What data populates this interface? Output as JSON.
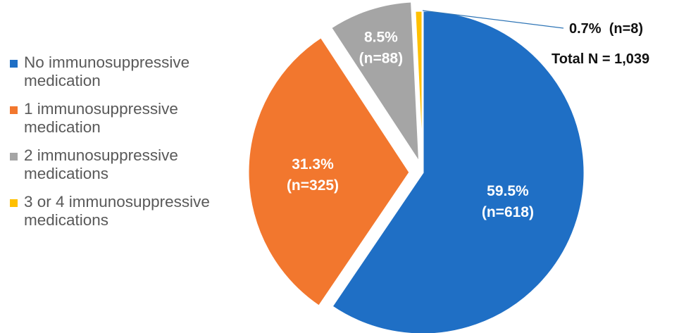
{
  "chart_data": {
    "type": "pie",
    "total": 1039,
    "slices": [
      {
        "name": "No immunosuppressive medication",
        "n": 618,
        "percent": 59.5,
        "color": "#1F6FC5",
        "label_pct": "59.5%",
        "label_n": "(n=618)"
      },
      {
        "name": "1 immunosuppressive medication",
        "n": 325,
        "percent": 31.3,
        "color": "#F2772E",
        "label_pct": "31.3%",
        "label_n": "(n=325)"
      },
      {
        "name": "2 immunosuppressive medications",
        "n": 88,
        "percent": 8.5,
        "color": "#A5A5A5",
        "label_pct": "8.5%",
        "label_n": "(n=88)"
      },
      {
        "name": "3 or 4 immunosuppressive medications",
        "n": 8,
        "percent": 0.7,
        "color": "#FFC000",
        "label_pct": "",
        "label_n": ""
      }
    ],
    "legend": {
      "placement": "left",
      "items": [
        {
          "line1": "No immunosuppressive",
          "line2": "medication",
          "color": "#1F6FC5"
        },
        {
          "line1": "1 immunosuppressive",
          "line2": "medication",
          "color": "#F2772E"
        },
        {
          "line1": "2 immunosuppressive",
          "line2": "medications",
          "color": "#A5A5A5"
        },
        {
          "line1": "3 or 4 immunosuppressive",
          "line2": "medications",
          "color": "#FFC000"
        }
      ]
    },
    "annotations": {
      "small_slice": "0.7%  (n=8)",
      "total": "Total N = 1,039",
      "leader_color": "#2E75B6"
    }
  }
}
